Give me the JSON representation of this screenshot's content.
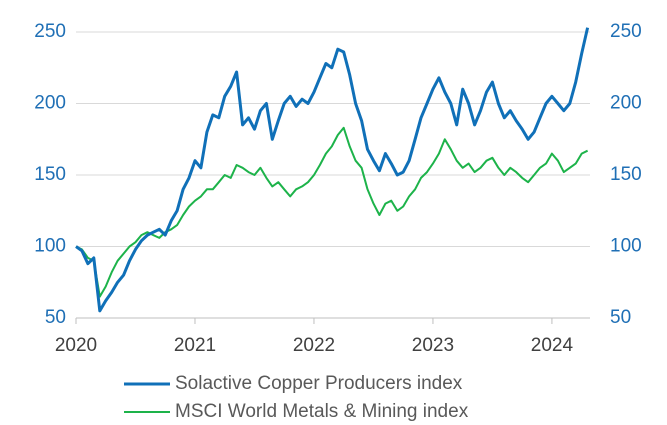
{
  "chart_data": {
    "type": "line",
    "x": [
      2020.0,
      2020.05,
      2020.1,
      2020.15,
      2020.2,
      2020.25,
      2020.3,
      2020.35,
      2020.4,
      2020.45,
      2020.5,
      2020.55,
      2020.6,
      2020.65,
      2020.7,
      2020.75,
      2020.8,
      2020.85,
      2020.9,
      2020.95,
      2021.0,
      2021.05,
      2021.1,
      2021.15,
      2021.2,
      2021.25,
      2021.3,
      2021.35,
      2021.4,
      2021.45,
      2021.5,
      2021.55,
      2021.6,
      2021.65,
      2021.7,
      2021.75,
      2021.8,
      2021.85,
      2021.9,
      2021.95,
      2022.0,
      2022.05,
      2022.1,
      2022.15,
      2022.2,
      2022.25,
      2022.3,
      2022.35,
      2022.4,
      2022.45,
      2022.5,
      2022.55,
      2022.6,
      2022.65,
      2022.7,
      2022.75,
      2022.8,
      2022.85,
      2022.9,
      2022.95,
      2023.0,
      2023.05,
      2023.1,
      2023.15,
      2023.2,
      2023.25,
      2023.3,
      2023.35,
      2023.4,
      2023.45,
      2023.5,
      2023.55,
      2023.6,
      2023.65,
      2023.7,
      2023.75,
      2023.8,
      2023.85,
      2023.9,
      2023.95,
      2024.0,
      2024.05,
      2024.1,
      2024.15,
      2024.2,
      2024.25,
      2024.3
    ],
    "series": [
      {
        "name": "Solactive Copper Producers index",
        "color": "#1070b8",
        "values": [
          100,
          97,
          88,
          92,
          55,
          62,
          68,
          75,
          80,
          90,
          98,
          104,
          108,
          110,
          112,
          108,
          118,
          125,
          140,
          148,
          160,
          155,
          180,
          192,
          190,
          205,
          212,
          222,
          185,
          190,
          182,
          195,
          200,
          175,
          188,
          200,
          205,
          198,
          203,
          200,
          208,
          218,
          228,
          225,
          238,
          236,
          220,
          200,
          188,
          168,
          160,
          153,
          165,
          158,
          150,
          152,
          160,
          175,
          190,
          200,
          210,
          218,
          208,
          200,
          185,
          210,
          200,
          185,
          195,
          208,
          215,
          200,
          190,
          195,
          188,
          182,
          175,
          180,
          190,
          200,
          205,
          200,
          195,
          200,
          215,
          235,
          253
        ]
      },
      {
        "name": "MSCI World Metals & Mining index",
        "color": "#1db34a",
        "values": [
          100,
          98,
          92,
          90,
          65,
          72,
          82,
          90,
          95,
          100,
          103,
          108,
          110,
          108,
          106,
          110,
          112,
          115,
          122,
          128,
          132,
          135,
          140,
          140,
          145,
          150,
          148,
          157,
          155,
          152,
          150,
          155,
          148,
          142,
          145,
          140,
          135,
          140,
          142,
          145,
          150,
          157,
          165,
          170,
          178,
          183,
          170,
          160,
          155,
          140,
          130,
          122,
          130,
          132,
          125,
          128,
          135,
          140,
          148,
          152,
          158,
          165,
          175,
          168,
          160,
          155,
          158,
          152,
          155,
          160,
          162,
          155,
          150,
          155,
          152,
          148,
          145,
          150,
          155,
          158,
          165,
          160,
          152,
          155,
          158,
          165,
          167
        ]
      }
    ],
    "xlim": [
      2020,
      2024.32
    ],
    "xticks": [
      2020,
      2021,
      2022,
      2023,
      2024
    ],
    "ylim": [
      50,
      250
    ],
    "yticks": [
      50,
      100,
      150,
      200,
      250
    ],
    "y2lim": [
      50,
      250
    ],
    "y2ticks": [
      50,
      100,
      150,
      200,
      250
    ],
    "grid": true,
    "legend": "bottom"
  }
}
